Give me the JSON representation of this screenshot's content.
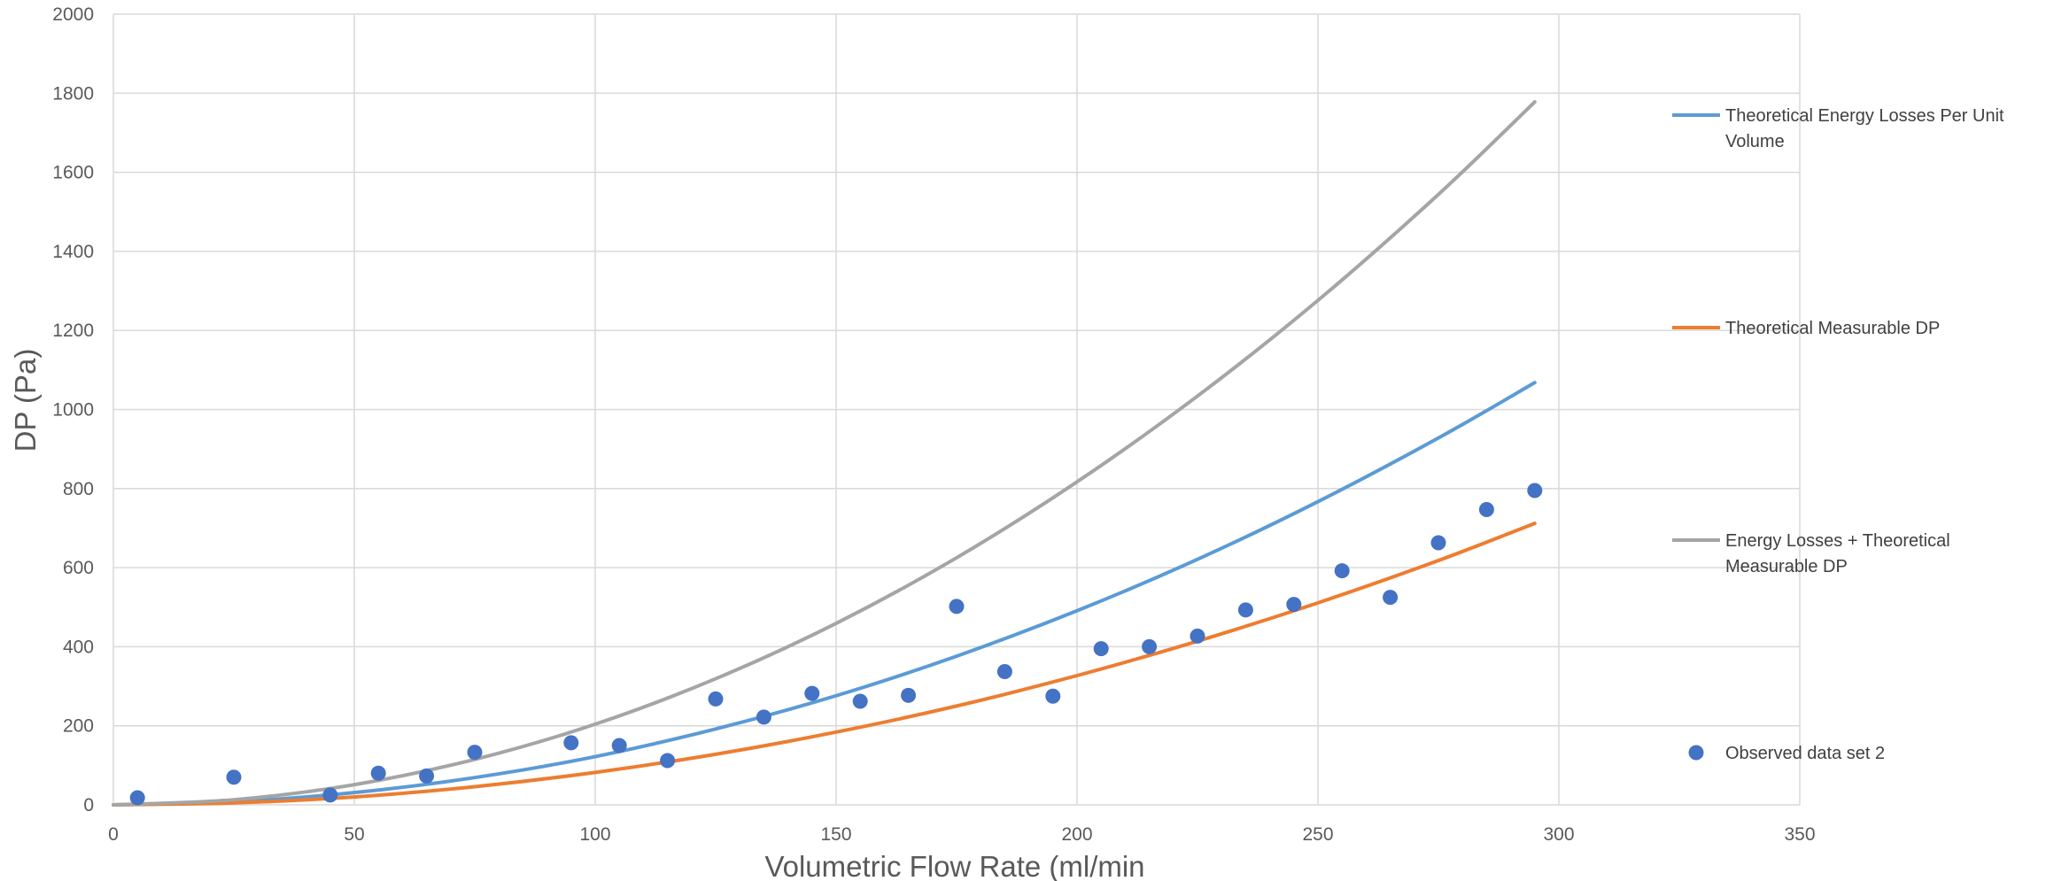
{
  "chart_data": {
    "type": "scatter",
    "title": "",
    "xlabel": "Volumetric Flow Rate (ml/min",
    "ylabel": "DP (Pa)",
    "xlim": [
      0,
      350
    ],
    "ylim": [
      0,
      2000
    ],
    "x_ticks": [
      0,
      50,
      100,
      150,
      200,
      250,
      300,
      350
    ],
    "y_ticks": [
      0,
      200,
      400,
      600,
      800,
      1000,
      1200,
      1400,
      1600,
      1800,
      2000
    ],
    "grid": true,
    "legend_position": "right",
    "series": [
      {
        "name": "Theoretical Energy Losses Per Unit Volume",
        "kind": "line",
        "color": "#5b9bd5",
        "x": [
          0,
          25,
          50,
          75,
          100,
          125,
          150,
          175,
          200,
          225,
          250,
          275,
          295
        ],
        "y": [
          0,
          8,
          31,
          69,
          122,
          192,
          276,
          376,
          491,
          621,
          767,
          928,
          1068
        ]
      },
      {
        "name": "Theoretical Measurable DP",
        "kind": "line",
        "color": "#ed7d31",
        "x": [
          0,
          25,
          50,
          75,
          100,
          125,
          150,
          175,
          200,
          225,
          250,
          275,
          295
        ],
        "y": [
          0,
          5,
          20,
          46,
          82,
          128,
          184,
          250,
          327,
          414,
          511,
          618,
          712
        ]
      },
      {
        "name": "Energy Losses + Theoretical Measurable DP",
        "kind": "line",
        "color": "#a5a5a5",
        "x": [
          0,
          25,
          50,
          75,
          100,
          125,
          150,
          175,
          200,
          225,
          250,
          275,
          295
        ],
        "y": [
          0,
          13,
          51,
          115,
          204,
          319,
          459,
          625,
          817,
          1034,
          1276,
          1544,
          1778
        ]
      },
      {
        "name": "Observed data set 2",
        "kind": "scatter",
        "color": "#4472c4",
        "x": [
          5,
          25,
          45,
          55,
          65,
          75,
          95,
          105,
          115,
          125,
          135,
          145,
          155,
          165,
          175,
          185,
          195,
          205,
          215,
          225,
          235,
          245,
          255,
          265,
          275,
          285,
          295
        ],
        "y": [
          18,
          70,
          25,
          80,
          73,
          133,
          157,
          150,
          112,
          268,
          222,
          282,
          262,
          277,
          502,
          337,
          275,
          395,
          400,
          427,
          493,
          507,
          592,
          525,
          663,
          747,
          795
        ]
      }
    ]
  }
}
